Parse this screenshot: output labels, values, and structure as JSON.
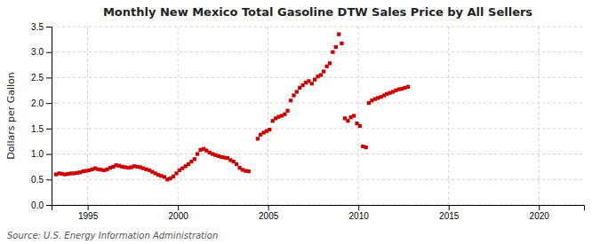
{
  "chart_data": {
    "type": "scatter",
    "title": "Monthly New Mexico Total Gasoline DTW Sales Price by All Sellers",
    "ylabel": "Dollars per Gallon",
    "annotations": [
      "Source: U.S. Energy Information Administration"
    ],
    "color": "#cc0000",
    "marker": "square",
    "grid": true,
    "xlim": [
      1993.0,
      2022.5
    ],
    "ylim": [
      0.0,
      3.5
    ],
    "xticks": [
      1995,
      2000,
      2005,
      2010,
      2015,
      2020
    ],
    "yticks": [
      {
        "value": 0.0,
        "label": "0.0"
      },
      0.5,
      {
        "value": 1.0,
        "label": "1.0"
      },
      1.5,
      {
        "value": 2.0,
        "label": "2.0"
      },
      2.5,
      {
        "value": 3.0,
        "label": "3.0"
      },
      3.5
    ],
    "x": [
      1993.25,
      1993.42,
      1993.58,
      1993.75,
      1993.92,
      1994.08,
      1994.25,
      1994.42,
      1994.58,
      1994.75,
      1994.92,
      1995.08,
      1995.25,
      1995.42,
      1995.58,
      1995.75,
      1995.92,
      1996.08,
      1996.25,
      1996.42,
      1996.58,
      1996.75,
      1996.92,
      1997.08,
      1997.25,
      1997.42,
      1997.58,
      1997.75,
      1997.92,
      1998.08,
      1998.25,
      1998.42,
      1998.58,
      1998.75,
      1998.92,
      1999.08,
      1999.25,
      1999.42,
      1999.58,
      1999.75,
      1999.92,
      2000.08,
      2000.25,
      2000.42,
      2000.58,
      2000.75,
      2000.92,
      2001.08,
      2001.25,
      2001.42,
      2001.58,
      2001.75,
      2001.92,
      2002.08,
      2002.25,
      2002.42,
      2002.58,
      2002.75,
      2002.92,
      2003.08,
      2003.25,
      2003.42,
      2003.58,
      2003.75,
      2003.92,
      2004.42,
      2004.58,
      2004.75,
      2004.92,
      2005.08,
      2005.25,
      2005.42,
      2005.58,
      2005.75,
      2005.92,
      2006.08,
      2006.25,
      2006.42,
      2006.58,
      2006.75,
      2006.92,
      2007.08,
      2007.25,
      2007.42,
      2007.58,
      2007.75,
      2007.92,
      2008.08,
      2008.25,
      2008.42,
      2008.58,
      2008.75,
      2008.92,
      2009.08,
      2009.25,
      2009.42,
      2009.58,
      2009.75,
      2009.92,
      2010.08,
      2010.25,
      2010.42,
      2010.58,
      2010.75,
      2010.92,
      2011.08,
      2011.25,
      2011.42,
      2011.58,
      2011.75,
      2011.92,
      2012.08,
      2012.25,
      2012.42,
      2012.58,
      2012.75
    ],
    "values": [
      0.6,
      0.62,
      0.61,
      0.6,
      0.61,
      0.62,
      0.62,
      0.63,
      0.64,
      0.66,
      0.67,
      0.68,
      0.7,
      0.72,
      0.7,
      0.69,
      0.68,
      0.7,
      0.73,
      0.75,
      0.78,
      0.77,
      0.75,
      0.74,
      0.73,
      0.74,
      0.76,
      0.75,
      0.74,
      0.72,
      0.7,
      0.68,
      0.65,
      0.62,
      0.59,
      0.57,
      0.55,
      0.5,
      0.52,
      0.56,
      0.62,
      0.68,
      0.72,
      0.76,
      0.8,
      0.85,
      0.9,
      1.0,
      1.08,
      1.1,
      1.07,
      1.03,
      1.0,
      0.98,
      0.96,
      0.94,
      0.93,
      0.92,
      0.88,
      0.85,
      0.8,
      0.73,
      0.69,
      0.67,
      0.66,
      1.3,
      1.38,
      1.42,
      1.45,
      1.48,
      1.65,
      1.7,
      1.73,
      1.75,
      1.78,
      1.85,
      2.05,
      2.15,
      2.22,
      2.3,
      2.35,
      2.4,
      2.43,
      2.38,
      2.46,
      2.52,
      2.55,
      2.62,
      2.72,
      2.78,
      3.0,
      3.1,
      3.35,
      3.17,
      1.7,
      1.65,
      1.72,
      1.75,
      1.6,
      1.55,
      1.15,
      1.13,
      2.0,
      2.05,
      2.08,
      2.1,
      2.12,
      2.15,
      2.18,
      2.2,
      2.22,
      2.25,
      2.27,
      2.28,
      2.3,
      2.32
    ]
  }
}
